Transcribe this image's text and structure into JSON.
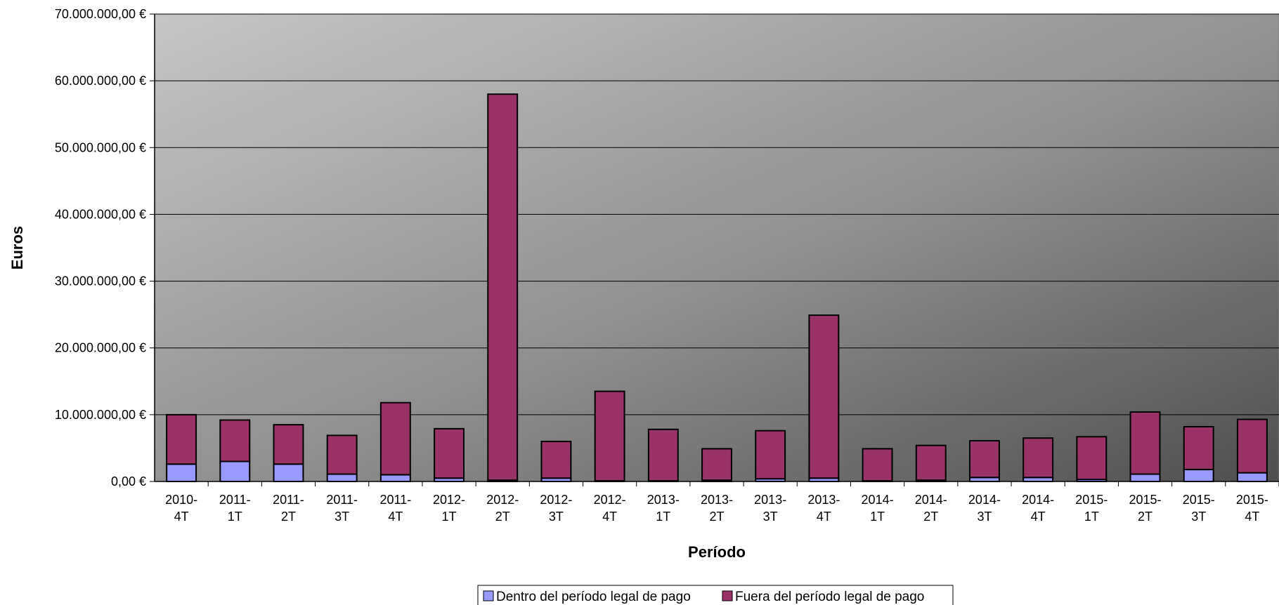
{
  "chart_data": {
    "type": "bar",
    "stacked": true,
    "title": "",
    "xlabel": "Período",
    "ylabel": "Euros",
    "ylim": [
      0,
      70000000
    ],
    "y_ticks": [
      {
        "value": 0,
        "label": "0,00 €"
      },
      {
        "value": 10000000,
        "label": "10.000.000,00 €"
      },
      {
        "value": 20000000,
        "label": "20.000.000,00 €"
      },
      {
        "value": 30000000,
        "label": "30.000.000,00 €"
      },
      {
        "value": 40000000,
        "label": "40.000.000,00 €"
      },
      {
        "value": 50000000,
        "label": "50.000.000,00 €"
      },
      {
        "value": 60000000,
        "label": "60.000.000,00 €"
      },
      {
        "value": 70000000,
        "label": "70.000.000,00 €"
      }
    ],
    "categories": [
      [
        "2010-",
        "4T"
      ],
      [
        "2011-",
        "1T"
      ],
      [
        "2011-",
        "2T"
      ],
      [
        "2011-",
        "3T"
      ],
      [
        "2011-",
        "4T"
      ],
      [
        "2012-",
        "1T"
      ],
      [
        "2012-",
        "2T"
      ],
      [
        "2012-",
        "3T"
      ],
      [
        "2012-",
        "4T"
      ],
      [
        "2013-",
        "1T"
      ],
      [
        "2013-",
        "2T"
      ],
      [
        "2013-",
        "3T"
      ],
      [
        "2013-",
        "4T"
      ],
      [
        "2014-",
        "1T"
      ],
      [
        "2014-",
        "2T"
      ],
      [
        "2014-",
        "3T"
      ],
      [
        "2014-",
        "4T"
      ],
      [
        "2015-",
        "1T"
      ],
      [
        "2015-",
        "2T"
      ],
      [
        "2015-",
        "3T"
      ],
      [
        "2015-",
        "4T"
      ]
    ],
    "series": [
      {
        "name": "Dentro del período legal de pago",
        "color": "#9999ff",
        "values": [
          2600000,
          3000000,
          2600000,
          1100000,
          1000000,
          500000,
          200000,
          500000,
          100000,
          100000,
          200000,
          400000,
          500000,
          100000,
          200000,
          600000,
          600000,
          300000,
          1100000,
          1800000,
          1300000
        ]
      },
      {
        "name": "Fuera del período legal de pago",
        "color": "#993366",
        "values": [
          7400000,
          6200000,
          5900000,
          5800000,
          10800000,
          7400000,
          57800000,
          5500000,
          13400000,
          7700000,
          4700000,
          7200000,
          24400000,
          4800000,
          5200000,
          5500000,
          5900000,
          6400000,
          9300000,
          6400000,
          8000000
        ]
      }
    ],
    "grid": true,
    "legend_position": "bottom"
  }
}
